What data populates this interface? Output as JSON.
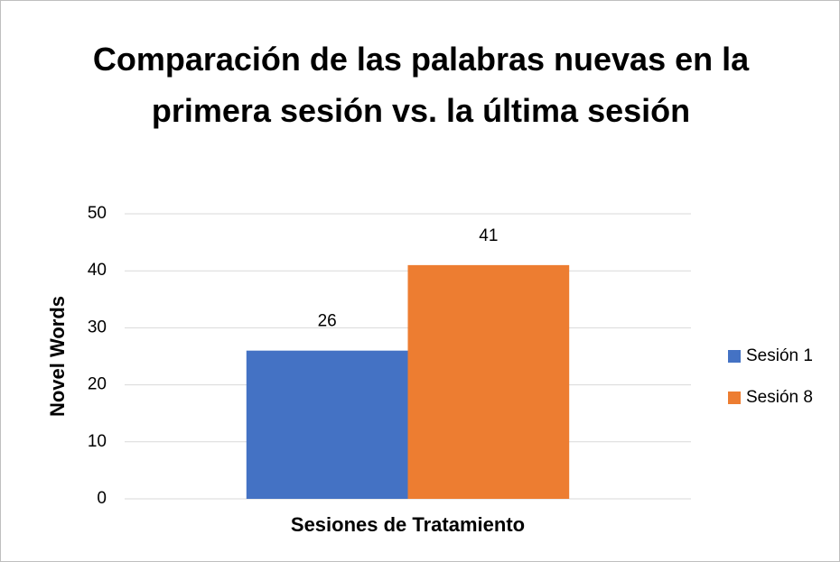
{
  "chart_data": {
    "type": "bar",
    "title": "Comparación de las palabras nuevas en la primera sesión vs. la última sesión",
    "xlabel": "Sesiones de Tratamiento",
    "ylabel": "Novel Words",
    "categories": [
      null
    ],
    "series": [
      {
        "name": "Sesión 1",
        "color": "#4472c4",
        "values": [
          26
        ]
      },
      {
        "name": "Sesión 8",
        "color": "#ed7d31",
        "values": [
          41
        ]
      }
    ],
    "ylim": [
      0,
      50
    ],
    "yticks": [
      0,
      10,
      20,
      30,
      40,
      50
    ],
    "grid": true,
    "legend": "right"
  }
}
